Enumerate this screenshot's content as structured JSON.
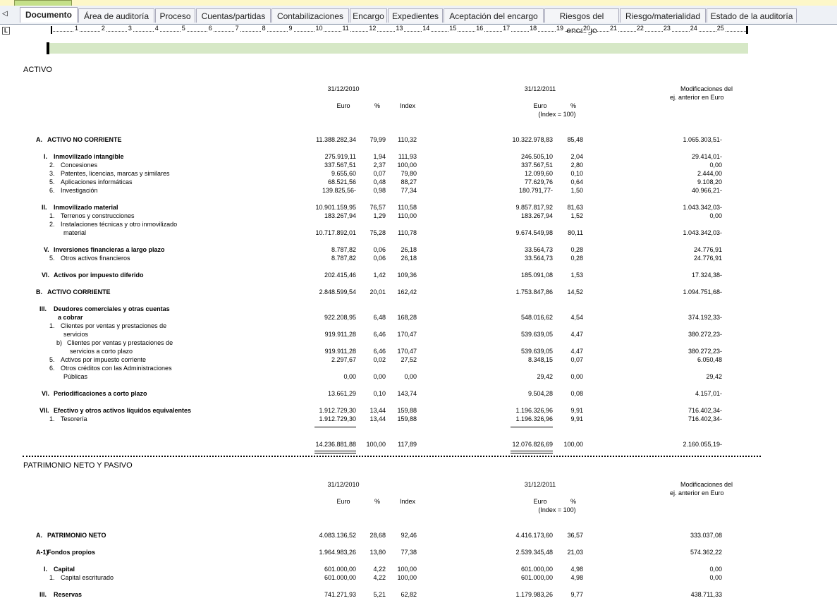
{
  "tabs": [
    "Documento",
    "Área de auditoría",
    "Proceso",
    "Cuentas/partidas",
    "Contabilizaciones",
    "Encargo",
    "Expedientes",
    "Aceptación del encargo",
    "Riesgos del encargo",
    "Riesgo/materialidad",
    "Estado de la auditoría"
  ],
  "ruler": [
    1,
    2,
    3,
    4,
    5,
    6,
    7,
    8,
    9,
    10,
    11,
    12,
    13,
    14,
    15,
    16,
    17,
    18,
    19,
    20,
    21,
    22,
    23,
    24,
    25
  ],
  "sections": [
    {
      "title": "ACTIVO",
      "header": {
        "date1": "31/12/2010",
        "euro1": "Euro",
        "pct1": "%",
        "index": "Index",
        "date2": "31/12/2011",
        "euro2": "Euro",
        "pct2": "%",
        "index_note": "(Index = 100)",
        "mods": [
          "Modificaciones del",
          "ej. anterior en Euro"
        ]
      },
      "rows": [
        {
          "marker": "A.",
          "lines": [
            "ACTIVO NO CORRIENTE"
          ],
          "cells": [
            "11.388.282,34",
            "79,99",
            "110,32",
            "10.322.978,83",
            "85,48",
            "1.065.303,51-"
          ]
        },
        {
          "marker": "I.",
          "lines": [
            "Inmovilizado intangible"
          ],
          "cells": [
            "275.919,11",
            "1,94",
            "111,93",
            "246.505,10",
            "2,04",
            "29.414,01-"
          ]
        },
        {
          "marker": "2.",
          "lines": [
            "Concesiones"
          ],
          "cells": [
            "337.567,51",
            "2,37",
            "100,00",
            "337.567,51",
            "2,80",
            "0,00"
          ]
        },
        {
          "marker": "3.",
          "lines": [
            "Patentes, licencias, marcas y similares"
          ],
          "cells": [
            "9.655,60",
            "0,07",
            "79,80",
            "12.099,60",
            "0,10",
            "2.444,00"
          ]
        },
        {
          "marker": "5.",
          "lines": [
            "Aplicaciones informáticas"
          ],
          "cells": [
            "68.521,56",
            "0,48",
            "88,27",
            "77.629,76",
            "0,64",
            "9.108,20"
          ]
        },
        {
          "marker": "6.",
          "lines": [
            "Investigación"
          ],
          "cells": [
            "139.825,56-",
            "0,98",
            "77,34",
            "180.791,77-",
            "1,50",
            "40.966,21-"
          ]
        },
        {
          "marker": "II.",
          "lines": [
            "Inmovilizado material"
          ],
          "cells": [
            "10.901.159,95",
            "76,57",
            "110,58",
            "9.857.817,92",
            "81,63",
            "1.043.342,03-"
          ]
        },
        {
          "marker": "1.",
          "lines": [
            "Terrenos y construcciones"
          ],
          "cells": [
            "183.267,94",
            "1,29",
            "110,00",
            "183.267,94",
            "1,52",
            "0,00"
          ]
        },
        {
          "marker": "2.",
          "lines": [
            "Instalaciones técnicas y otro inmovilizado",
            "material"
          ],
          "cells": [
            "10.717.892,01",
            "75,28",
            "110,78",
            "9.674.549,98",
            "80,11",
            "1.043.342,03-"
          ]
        },
        {
          "marker": "V.",
          "lines": [
            "Inversiones financieras a largo plazo"
          ],
          "cells": [
            "8.787,82",
            "0,06",
            "26,18",
            "33.564,73",
            "0,28",
            "24.776,91"
          ]
        },
        {
          "marker": "5.",
          "lines": [
            "Otros activos financieros"
          ],
          "cells": [
            "8.787,82",
            "0,06",
            "26,18",
            "33.564,73",
            "0,28",
            "24.776,91"
          ]
        },
        {
          "marker": "VI.",
          "lines": [
            "Activos por impuesto diferido"
          ],
          "cells": [
            "202.415,46",
            "1,42",
            "109,36",
            "185.091,08",
            "1,53",
            "17.324,38-"
          ]
        },
        {
          "marker": "B.",
          "lines": [
            "ACTIVO CORRIENTE"
          ],
          "cells": [
            "2.848.599,54",
            "20,01",
            "162,42",
            "1.753.847,86",
            "14,52",
            "1.094.751,68-"
          ]
        },
        {
          "marker": "III.",
          "lines": [
            "Deudores comerciales y otras cuentas",
            "a cobrar"
          ],
          "cells": [
            "922.208,95",
            "6,48",
            "168,28",
            "548.016,62",
            "4,54",
            "374.192,33-"
          ]
        },
        {
          "marker": "1.",
          "lines": [
            "Clientes por ventas y prestaciones de",
            "servicios"
          ],
          "cells": [
            "919.911,28",
            "6,46",
            "170,47",
            "539.639,05",
            "4,47",
            "380.272,23-"
          ]
        },
        {
          "marker": "b)",
          "lines": [
            "Clientes por ventas y prestaciones de",
            "servicios a corto plazo"
          ],
          "cells": [
            "919.911,28",
            "6,46",
            "170,47",
            "539.639,05",
            "4,47",
            "380.272,23-"
          ]
        },
        {
          "marker": "5.",
          "lines": [
            "Activos por impuesto corriente"
          ],
          "cells": [
            "2.297,67",
            "0,02",
            "27,52",
            "8.348,15",
            "0,07",
            "6.050,48"
          ]
        },
        {
          "marker": "6.",
          "lines": [
            "Otros créditos con las Administraciones",
            "Públicas"
          ],
          "cells": [
            "0,00",
            "0,00",
            "0,00",
            "29,42",
            "0,00",
            "29,42"
          ]
        },
        {
          "marker": "VI.",
          "lines": [
            "Periodificaciones a corto plazo"
          ],
          "cells": [
            "13.661,29",
            "0,10",
            "143,74",
            "9.504,28",
            "0,08",
            "4.157,01-"
          ]
        },
        {
          "marker": "VII.",
          "lines": [
            "Efectivo y otros activos líquidos equivalentes"
          ],
          "cells": [
            "1.912.729,30",
            "13,44",
            "159,88",
            "1.196.326,96",
            "9,91",
            "716.402,34-"
          ]
        },
        {
          "marker": "1.",
          "lines": [
            "Tesorería"
          ],
          "cells": [
            "1.912.729,30",
            "13,44",
            "159,88",
            "1.196.326,96",
            "9,91",
            "716.402,34-"
          ]
        }
      ],
      "total": [
        "14.236.881,88",
        "100,00",
        "117,89",
        "12.076.826,69",
        "100,00",
        "2.160.055,19-"
      ]
    },
    {
      "title": "PATRIMONIO NETO Y PASIVO",
      "header": {
        "date1": "31/12/2010",
        "euro1": "Euro",
        "pct1": "%",
        "index": "Index",
        "date2": "31/12/2011",
        "euro2": "Euro",
        "pct2": "%",
        "index_note": "(Index = 100)",
        "mods": [
          "Modificaciones del",
          "ej. anterior en Euro"
        ]
      },
      "rows": [
        {
          "marker": "A.",
          "lines": [
            "PATRIMONIO NETO"
          ],
          "cells": [
            "4.083.136,52",
            "28,68",
            "92,46",
            "4.416.173,60",
            "36,57",
            "333.037,08"
          ]
        },
        {
          "marker": "A-1)",
          "lines": [
            "Fondos propios"
          ],
          "cells": [
            "1.964.983,26",
            "13,80",
            "77,38",
            "2.539.345,48",
            "21,03",
            "574.362,22"
          ]
        },
        {
          "marker": "I.",
          "lines": [
            "Capital"
          ],
          "cells": [
            "601.000,00",
            "4,22",
            "100,00",
            "601.000,00",
            "4,98",
            "0,00"
          ]
        },
        {
          "marker": "1.",
          "lines": [
            "Capital escriturado"
          ],
          "cells": [
            "601.000,00",
            "4,22",
            "100,00",
            "601.000,00",
            "4,98",
            "0,00"
          ]
        },
        {
          "marker": "III.",
          "lines": [
            "Reservas"
          ],
          "cells": [
            "741.271,93",
            "5,21",
            "62,82",
            "1.179.983,26",
            "9,77",
            "438.711,33"
          ]
        }
      ]
    }
  ]
}
